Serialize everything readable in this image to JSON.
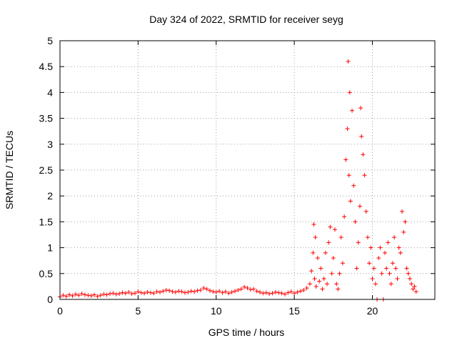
{
  "chart_data": {
    "type": "scatter",
    "title": "Day 324 of 2022, SRMTID for receiver seyg",
    "xlabel": "GPS time / hours",
    "ylabel": "SRMTID / TECUs",
    "xlim": [
      0,
      24
    ],
    "ylim": [
      0,
      5
    ],
    "xticks": [
      0,
      5,
      10,
      15,
      20
    ],
    "yticks": [
      0,
      0.5,
      1,
      1.5,
      2,
      2.5,
      3,
      3.5,
      4,
      4.5,
      5
    ],
    "xtick_labels": [
      "0",
      "5",
      "10",
      "15",
      "20"
    ],
    "ytick_labels": [
      "0",
      "0.5",
      "1",
      "1.5",
      "2",
      "2.5",
      "3",
      "3.5",
      "4",
      "4.5",
      "5"
    ],
    "grid": true,
    "marker": "plus",
    "color": "#ff0000",
    "series": [
      {
        "name": "SRMTID",
        "x": [
          0.0,
          0.2,
          0.4,
          0.6,
          0.8,
          1.0,
          1.2,
          1.4,
          1.6,
          1.8,
          2.0,
          2.2,
          2.4,
          2.6,
          2.8,
          3.0,
          3.2,
          3.4,
          3.6,
          3.8,
          4.0,
          4.2,
          4.4,
          4.6,
          4.8,
          5.0,
          5.2,
          5.4,
          5.6,
          5.8,
          6.0,
          6.2,
          6.4,
          6.6,
          6.8,
          7.0,
          7.2,
          7.4,
          7.6,
          7.8,
          8.0,
          8.2,
          8.4,
          8.6,
          8.8,
          9.0,
          9.2,
          9.4,
          9.6,
          9.8,
          10.0,
          10.2,
          10.4,
          10.6,
          10.8,
          11.0,
          11.2,
          11.4,
          11.6,
          11.8,
          12.0,
          12.2,
          12.4,
          12.6,
          12.8,
          13.0,
          13.2,
          13.4,
          13.6,
          13.8,
          14.0,
          14.2,
          14.4,
          14.6,
          14.8,
          15.0,
          15.2,
          15.4,
          15.6,
          15.8,
          16.0,
          16.1,
          16.2,
          16.25,
          16.3,
          16.35,
          16.4,
          16.5,
          16.6,
          16.7,
          16.8,
          16.9,
          17.0,
          17.1,
          17.2,
          17.3,
          17.4,
          17.5,
          17.6,
          17.7,
          17.8,
          17.9,
          18.0,
          18.1,
          18.2,
          18.3,
          18.4,
          18.45,
          18.5,
          18.55,
          18.6,
          18.7,
          18.8,
          18.9,
          19.0,
          19.1,
          19.2,
          19.25,
          19.3,
          19.4,
          19.5,
          19.6,
          19.7,
          19.8,
          19.9,
          20.0,
          20.1,
          20.2,
          20.3,
          20.4,
          20.5,
          20.6,
          20.7,
          20.8,
          20.9,
          21.0,
          21.1,
          21.2,
          21.3,
          21.4,
          21.5,
          21.6,
          21.7,
          21.8,
          21.9,
          22.0,
          22.1,
          22.2,
          22.3,
          22.4,
          22.5,
          22.6,
          22.7,
          22.8
        ],
        "y": [
          0.05,
          0.08,
          0.06,
          0.09,
          0.07,
          0.1,
          0.08,
          0.11,
          0.09,
          0.08,
          0.07,
          0.09,
          0.06,
          0.08,
          0.1,
          0.09,
          0.11,
          0.12,
          0.1,
          0.11,
          0.13,
          0.12,
          0.14,
          0.11,
          0.12,
          0.15,
          0.13,
          0.12,
          0.14,
          0.13,
          0.12,
          0.15,
          0.14,
          0.16,
          0.18,
          0.17,
          0.15,
          0.14,
          0.16,
          0.15,
          0.13,
          0.14,
          0.16,
          0.15,
          0.17,
          0.18,
          0.22,
          0.2,
          0.17,
          0.15,
          0.14,
          0.16,
          0.13,
          0.15,
          0.12,
          0.14,
          0.16,
          0.18,
          0.2,
          0.24,
          0.22,
          0.19,
          0.2,
          0.16,
          0.14,
          0.12,
          0.13,
          0.11,
          0.12,
          0.14,
          0.13,
          0.12,
          0.1,
          0.13,
          0.15,
          0.12,
          0.14,
          0.16,
          0.18,
          0.22,
          0.3,
          0.55,
          0.9,
          1.45,
          0.4,
          1.2,
          0.25,
          0.8,
          0.35,
          0.6,
          0.2,
          0.4,
          0.9,
          0.3,
          1.1,
          1.4,
          0.5,
          0.8,
          1.35,
          0.3,
          0.2,
          0.5,
          1.2,
          0.7,
          1.6,
          2.7,
          3.3,
          4.6,
          2.4,
          4.0,
          1.9,
          3.65,
          2.2,
          1.5,
          0.6,
          1.1,
          1.8,
          3.7,
          3.15,
          2.8,
          2.4,
          1.7,
          1.2,
          0.7,
          1.0,
          0.4,
          0.6,
          0.3,
          0.0,
          0.8,
          1.0,
          0.5,
          0.0,
          0.9,
          0.6,
          1.1,
          0.5,
          0.3,
          0.7,
          1.2,
          0.6,
          0.4,
          1.0,
          0.9,
          1.7,
          1.3,
          1.5,
          0.6,
          0.5,
          0.4,
          0.3,
          0.2,
          0.25,
          0.15
        ],
        "labels": []
      }
    ]
  },
  "page": {
    "title": "Day 324 of 2022, SRMTID for receiver seyg",
    "xlabel": "GPS time / hours",
    "ylabel": "SRMTID / TECUs"
  }
}
